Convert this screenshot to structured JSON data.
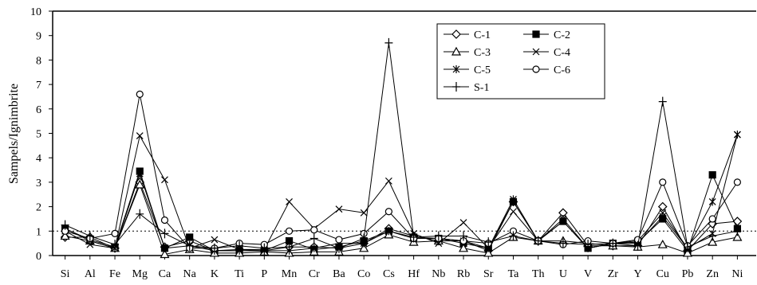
{
  "chart_data": {
    "type": "line",
    "title": "",
    "xlabel": "",
    "ylabel": "Sampels/Ignimbrite",
    "ylim": [
      0,
      10
    ],
    "yticks": [
      0,
      1,
      2,
      3,
      4,
      5,
      6,
      7,
      8,
      9,
      10
    ],
    "grid": false,
    "legend_position": "top-center",
    "reference_line": {
      "y": 1,
      "style": "dotted"
    },
    "categories": [
      "Si",
      "Al",
      "Fe",
      "Mg",
      "Ca",
      "Na",
      "K",
      "Ti",
      "P",
      "Mn",
      "Cr",
      "Ba",
      "Co",
      "Cs",
      "Hf",
      "Nb",
      "Rb",
      "Sr",
      "Ta",
      "Th",
      "U",
      "V",
      "Zr",
      "Y",
      "Cu",
      "Pb",
      "Zn",
      "Ni"
    ],
    "series": [
      {
        "name": "C-1",
        "marker": "diamond-open",
        "values": [
          0.75,
          0.75,
          0.3,
          3.0,
          0.35,
          0.6,
          0.2,
          0.25,
          0.2,
          0.35,
          0.35,
          0.3,
          0.5,
          1.1,
          0.8,
          0.6,
          0.6,
          0.2,
          2.2,
          0.6,
          1.75,
          0.4,
          0.4,
          0.4,
          2.0,
          0.2,
          1.3,
          1.4
        ]
      },
      {
        "name": "C-2",
        "marker": "square-filled",
        "values": [
          1.1,
          0.65,
          0.35,
          3.45,
          0.3,
          0.75,
          0.2,
          0.2,
          0.2,
          0.6,
          0.25,
          0.35,
          0.6,
          1.0,
          0.75,
          0.7,
          0.5,
          0.3,
          2.2,
          0.6,
          1.4,
          0.3,
          0.5,
          0.55,
          1.5,
          0.2,
          3.3,
          1.1
        ]
      },
      {
        "name": "C-3",
        "marker": "triangle-open",
        "values": [
          0.8,
          0.6,
          0.3,
          2.9,
          0.05,
          0.25,
          0.1,
          0.1,
          0.15,
          0.1,
          0.15,
          0.15,
          0.3,
          0.85,
          0.55,
          0.6,
          0.3,
          0.1,
          0.75,
          0.6,
          0.6,
          0.5,
          0.4,
          0.35,
          0.45,
          0.1,
          0.55,
          0.75
        ]
      },
      {
        "name": "C-4",
        "marker": "x",
        "values": [
          1.0,
          0.45,
          0.3,
          4.9,
          3.1,
          0.3,
          0.65,
          0.25,
          0.25,
          2.2,
          1.1,
          1.9,
          1.75,
          3.05,
          0.9,
          0.5,
          1.35,
          0.3,
          1.8,
          0.6,
          1.4,
          0.3,
          0.5,
          0.6,
          1.75,
          0.3,
          0.9,
          4.95
        ]
      },
      {
        "name": "C-5",
        "marker": "asterisk",
        "values": [
          1.1,
          0.6,
          0.3,
          3.35,
          0.3,
          0.4,
          0.2,
          0.2,
          0.2,
          0.2,
          0.3,
          0.5,
          0.5,
          1.0,
          0.7,
          0.7,
          0.6,
          0.3,
          2.3,
          0.6,
          1.5,
          0.3,
          0.5,
          0.5,
          1.6,
          0.3,
          2.2,
          4.95
        ]
      },
      {
        "name": "C-6",
        "marker": "circle-open",
        "values": [
          1.0,
          0.7,
          0.9,
          6.6,
          1.45,
          0.3,
          0.3,
          0.5,
          0.45,
          1.0,
          1.05,
          0.65,
          0.9,
          1.8,
          0.7,
          0.7,
          0.6,
          0.5,
          1.0,
          0.6,
          0.45,
          0.6,
          0.5,
          0.65,
          3.0,
          0.4,
          1.5,
          3.0
        ]
      },
      {
        "name": "S-1",
        "marker": "plus",
        "values": [
          1.25,
          0.8,
          0.45,
          1.7,
          0.9,
          0.4,
          0.3,
          0.4,
          0.3,
          0.35,
          0.7,
          0.3,
          0.7,
          8.7,
          0.75,
          0.8,
          0.8,
          0.55,
          0.8,
          0.6,
          0.5,
          0.45,
          0.5,
          0.4,
          6.3,
          0.35,
          0.8,
          1.0
        ]
      }
    ]
  }
}
